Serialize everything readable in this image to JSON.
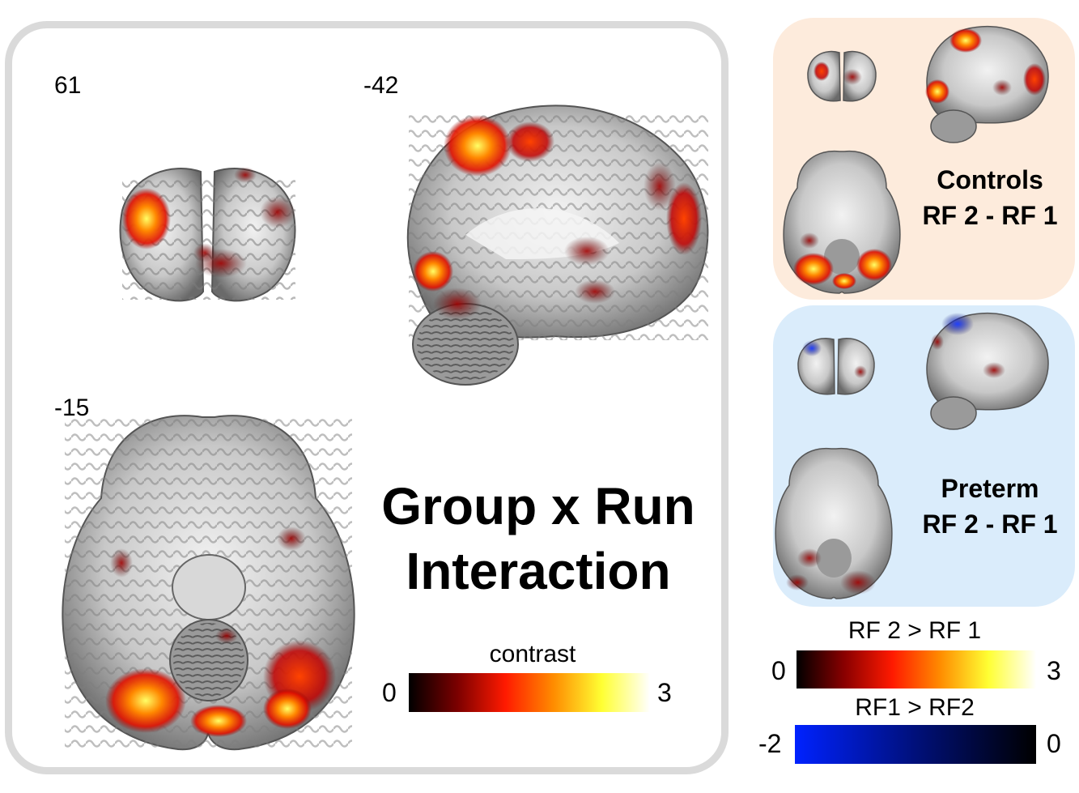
{
  "main": {
    "slices": {
      "coronal": "61",
      "sagittal": "-42",
      "axial": "-15"
    },
    "title_line1": "Group x Run",
    "title_line2": "Interaction",
    "colorbar": {
      "title": "contrast",
      "min": "0",
      "max": "3",
      "colors": [
        "#000000",
        "#7a0000",
        "#ff1a00",
        "#ff8c00",
        "#ffff33",
        "#ffffff"
      ]
    }
  },
  "controls_panel": {
    "line1": "Controls",
    "line2": "RF 2 - RF 1",
    "background": "#fdebdc"
  },
  "preterm_panel": {
    "line1": "Preterm",
    "line2": "RF 2 - RF 1",
    "background": "#daecfb"
  },
  "legend": {
    "positive": {
      "title": "RF 2 > RF 1",
      "min": "0",
      "max": "3",
      "colors": [
        "#000000",
        "#8a0000",
        "#ff1a00",
        "#ff8c00",
        "#ffff33",
        "#ffffff"
      ]
    },
    "negative": {
      "title": "RF1 > RF2",
      "min": "-2",
      "max": "0",
      "colors": [
        "#0022ff",
        "#00107a",
        "#000000"
      ]
    }
  }
}
